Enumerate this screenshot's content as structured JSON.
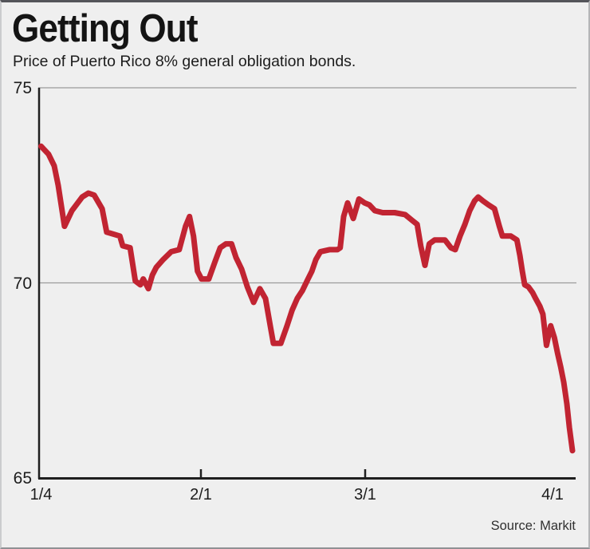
{
  "chart_data": {
    "type": "line",
    "title": "Getting Out",
    "subtitle": "Price of Puerto Rico 8% general obligation bonds.",
    "source": "Source: Markit",
    "ylim": [
      65,
      75
    ],
    "grid": "horizontal gridlines at 75 and 70; solid dark axis at 65 (bottom) and left edge",
    "legend_position": "none",
    "ylabels": [
      {
        "value": 75
      },
      {
        "value": 70
      },
      {
        "value": 65
      }
    ],
    "xticks": [
      {
        "day": 0,
        "label": "1/4",
        "tick": false
      },
      {
        "day": 28,
        "label": "2/1",
        "tick": true
      },
      {
        "day": 57,
        "label": "3/1",
        "tick": true
      },
      {
        "day": 88,
        "label": "4/1",
        "tick": false
      }
    ],
    "x_unit": "days since 1/4",
    "line_color": "#c12432",
    "points": [
      [
        0,
        73.5
      ],
      [
        1.3,
        73.3
      ],
      [
        2.3,
        73.0
      ],
      [
        3.0,
        72.5
      ],
      [
        4.1,
        71.45
      ],
      [
        5.4,
        71.85
      ],
      [
        7.2,
        72.2
      ],
      [
        8.3,
        72.3
      ],
      [
        9.3,
        72.25
      ],
      [
        10.7,
        71.9
      ],
      [
        11.5,
        71.3
      ],
      [
        13.8,
        71.2
      ],
      [
        14.3,
        70.95
      ],
      [
        15.6,
        70.9
      ],
      [
        16.5,
        70.05
      ],
      [
        17.4,
        69.95
      ],
      [
        17.9,
        70.1
      ],
      [
        18.8,
        69.85
      ],
      [
        19.5,
        70.2
      ],
      [
        20.2,
        70.4
      ],
      [
        21.4,
        70.6
      ],
      [
        22.8,
        70.8
      ],
      [
        24.2,
        70.85
      ],
      [
        25.3,
        71.45
      ],
      [
        26.0,
        71.7
      ],
      [
        26.7,
        71.2
      ],
      [
        27.4,
        70.3
      ],
      [
        28.1,
        70.1
      ],
      [
        29.4,
        70.1
      ],
      [
        30.5,
        70.55
      ],
      [
        31.4,
        70.9
      ],
      [
        32.4,
        71.0
      ],
      [
        33.4,
        71.0
      ],
      [
        34.2,
        70.65
      ],
      [
        35.2,
        70.35
      ],
      [
        36.2,
        69.9
      ],
      [
        37.3,
        69.5
      ],
      [
        38.4,
        69.85
      ],
      [
        39.4,
        69.6
      ],
      [
        40.3,
        68.85
      ],
      [
        40.8,
        68.45
      ],
      [
        42.1,
        68.45
      ],
      [
        43.2,
        68.9
      ],
      [
        44.1,
        69.3
      ],
      [
        45.0,
        69.6
      ],
      [
        45.9,
        69.8
      ],
      [
        46.9,
        70.1
      ],
      [
        47.6,
        70.3
      ],
      [
        48.3,
        70.6
      ],
      [
        49.1,
        70.8
      ],
      [
        50.7,
        70.85
      ],
      [
        52.1,
        70.85
      ],
      [
        52.6,
        70.9
      ],
      [
        53.2,
        71.7
      ],
      [
        53.9,
        72.05
      ],
      [
        54.9,
        71.65
      ],
      [
        55.9,
        72.15
      ],
      [
        56.9,
        72.05
      ],
      [
        57.7,
        72.0
      ],
      [
        58.6,
        71.85
      ],
      [
        59.9,
        71.8
      ],
      [
        61.9,
        71.8
      ],
      [
        63.6,
        71.75
      ],
      [
        64.8,
        71.6
      ],
      [
        65.6,
        71.5
      ],
      [
        66.2,
        70.95
      ],
      [
        66.9,
        70.45
      ],
      [
        67.6,
        71.0
      ],
      [
        68.5,
        71.1
      ],
      [
        70.2,
        71.1
      ],
      [
        71.2,
        70.9
      ],
      [
        71.9,
        70.85
      ],
      [
        72.7,
        71.2
      ],
      [
        73.5,
        71.5
      ],
      [
        74.3,
        71.85
      ],
      [
        75.1,
        72.1
      ],
      [
        75.7,
        72.2
      ],
      [
        76.5,
        72.1
      ],
      [
        77.4,
        72.0
      ],
      [
        78.4,
        71.9
      ],
      [
        79.2,
        71.45
      ],
      [
        79.7,
        71.2
      ],
      [
        81.1,
        71.2
      ],
      [
        82.1,
        71.1
      ],
      [
        82.6,
        70.7
      ],
      [
        83.0,
        70.3
      ],
      [
        83.4,
        69.95
      ],
      [
        84.0,
        69.9
      ],
      [
        84.7,
        69.75
      ],
      [
        85.2,
        69.6
      ],
      [
        85.9,
        69.4
      ],
      [
        86.4,
        69.2
      ],
      [
        87.0,
        68.4
      ],
      [
        87.7,
        68.9
      ],
      [
        88.3,
        68.6
      ],
      [
        88.8,
        68.2
      ],
      [
        89.3,
        67.85
      ],
      [
        89.8,
        67.45
      ],
      [
        90.3,
        66.9
      ],
      [
        90.7,
        66.3
      ],
      [
        91.2,
        65.7
      ]
    ]
  },
  "colors": {
    "background": "#efefef",
    "line": "#c12432",
    "axis": "#1f1f1f",
    "grid": "#9b9b9b",
    "top_border": "#54555a"
  }
}
